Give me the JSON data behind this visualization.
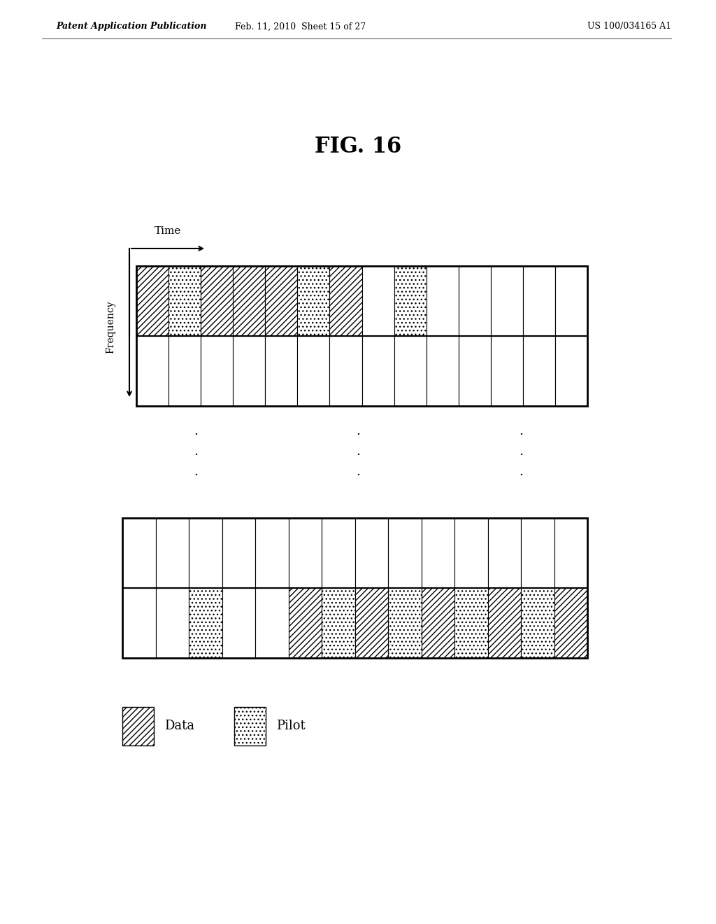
{
  "header_left": "Patent Application Publication",
  "header_mid": "Feb. 11, 2010  Sheet 15 of 27",
  "header_right": "US 100/034165 A1",
  "fig_label": "FIG. 16",
  "num_cols": 14,
  "background_color": "#ffffff",
  "top_grid_top_row": {
    "0": "data",
    "1": "pilot",
    "2": "data",
    "3": "data",
    "4": "data",
    "5": "pilot",
    "6": "data",
    "8": "pilot"
  },
  "bot_grid_bot_row": {
    "2": "pilot",
    "5": "data",
    "6": "pilot",
    "7": "data",
    "8": "pilot",
    "9": "data",
    "10": "pilot",
    "11": "data",
    "12": "pilot",
    "13": "data"
  }
}
